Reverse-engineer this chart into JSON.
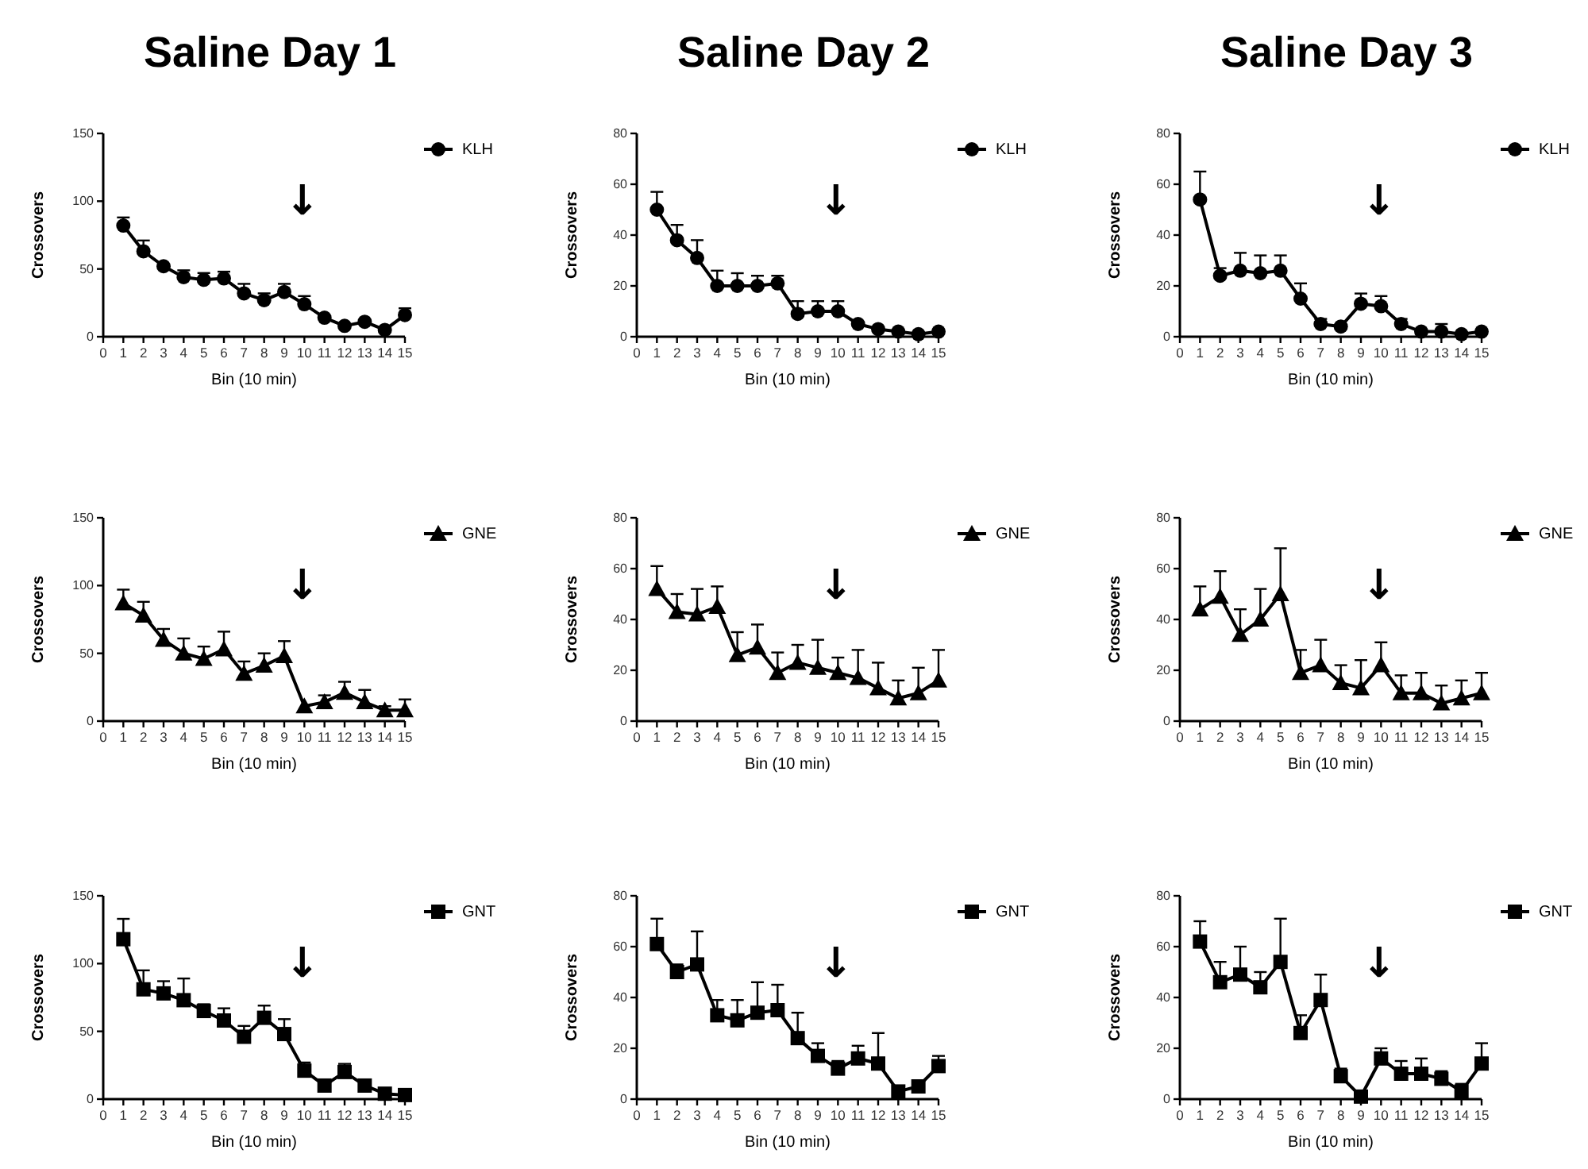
{
  "chart_data": [
    {
      "type": "line",
      "title": "Saline Day 1",
      "xlabel": "Bin (10 min)",
      "ylabel": "Crossovers",
      "xlim": [
        0,
        15
      ],
      "xticks": [
        0,
        1,
        2,
        3,
        4,
        5,
        6,
        7,
        8,
        9,
        10,
        11,
        12,
        13,
        14,
        15
      ],
      "ylim": [
        0,
        150
      ],
      "yticks": [
        0,
        50,
        100,
        150
      ],
      "legend": "top right",
      "marker": "circle",
      "annotations": [
        "↓"
      ],
      "series": [
        {
          "name": "KLH",
          "color": "#000000",
          "x": [
            1,
            2,
            3,
            4,
            5,
            6,
            7,
            8,
            9,
            10,
            11,
            12,
            13,
            14,
            15
          ],
          "values": [
            82,
            63,
            52,
            44,
            42,
            43,
            32,
            27,
            33,
            24,
            14,
            8,
            11,
            5,
            16
          ],
          "errors": [
            [
              82,
              88
            ],
            [
              63,
              71
            ],
            null,
            [
              44,
              49
            ],
            [
              42,
              47
            ],
            [
              43,
              48
            ],
            [
              32,
              39
            ],
            [
              27,
              32
            ],
            [
              33,
              39
            ],
            [
              24,
              30
            ],
            null,
            null,
            null,
            null,
            [
              16,
              21
            ]
          ]
        }
      ]
    },
    {
      "type": "line",
      "title": "Saline Day 2",
      "xlabel": "Bin (10 min)",
      "ylabel": "Crossovers",
      "xlim": [
        0,
        15
      ],
      "xticks": [
        0,
        1,
        2,
        3,
        4,
        5,
        6,
        7,
        8,
        9,
        10,
        11,
        12,
        13,
        14,
        15
      ],
      "ylim": [
        0,
        80
      ],
      "yticks": [
        0,
        20,
        40,
        60,
        80
      ],
      "legend": "top right",
      "marker": "circle",
      "annotations": [
        "↓"
      ],
      "series": [
        {
          "name": "KLH",
          "color": "#000000",
          "x": [
            1,
            2,
            3,
            4,
            5,
            6,
            7,
            8,
            9,
            10,
            11,
            12,
            13,
            14,
            15
          ],
          "values": [
            50,
            38,
            31,
            20,
            20,
            20,
            21,
            9,
            10,
            10,
            5,
            3,
            2,
            1,
            2
          ],
          "errors": [
            [
              50,
              57
            ],
            [
              38,
              44
            ],
            [
              31,
              38
            ],
            [
              20,
              26
            ],
            [
              20,
              25
            ],
            [
              20,
              24
            ],
            [
              21,
              24
            ],
            [
              9,
              14
            ],
            [
              10,
              14
            ],
            [
              10,
              14
            ],
            null,
            null,
            null,
            null,
            null
          ]
        }
      ]
    },
    {
      "type": "line",
      "title": "Saline Day 3",
      "xlabel": "Bin (10 min)",
      "ylabel": "Crossovers",
      "xlim": [
        0,
        15
      ],
      "xticks": [
        0,
        1,
        2,
        3,
        4,
        5,
        6,
        7,
        8,
        9,
        10,
        11,
        12,
        13,
        14,
        15
      ],
      "ylim": [
        0,
        80
      ],
      "yticks": [
        0,
        20,
        40,
        60,
        80
      ],
      "legend": "top right",
      "marker": "circle",
      "annotations": [
        "↓"
      ],
      "series": [
        {
          "name": "KLH",
          "color": "#000000",
          "x": [
            1,
            2,
            3,
            4,
            5,
            6,
            7,
            8,
            9,
            10,
            11,
            12,
            13,
            14,
            15
          ],
          "values": [
            54,
            24,
            26,
            25,
            26,
            15,
            5,
            4,
            13,
            12,
            5,
            2,
            2,
            1,
            2
          ],
          "errors": [
            [
              54,
              65
            ],
            [
              24,
              27
            ],
            [
              26,
              33
            ],
            [
              25,
              32
            ],
            [
              26,
              32
            ],
            [
              15,
              21
            ],
            [
              5,
              7
            ],
            null,
            [
              13,
              17
            ],
            [
              12,
              16
            ],
            [
              5,
              7
            ],
            null,
            [
              2,
              5
            ],
            null,
            null
          ]
        }
      ]
    },
    {
      "type": "line",
      "xlabel": "Bin (10 min)",
      "ylabel": "Crossovers",
      "xlim": [
        0,
        15
      ],
      "xticks": [
        0,
        1,
        2,
        3,
        4,
        5,
        6,
        7,
        8,
        9,
        10,
        11,
        12,
        13,
        14,
        15
      ],
      "ylim": [
        0,
        150
      ],
      "yticks": [
        0,
        50,
        100,
        150
      ],
      "legend": "top right",
      "marker": "triangle",
      "annotations": [
        "↓"
      ],
      "series": [
        {
          "name": "GNE",
          "color": "#000000",
          "x": [
            1,
            2,
            3,
            4,
            5,
            6,
            7,
            8,
            9,
            10,
            11,
            12,
            13,
            14,
            15
          ],
          "values": [
            87,
            78,
            60,
            50,
            46,
            53,
            35,
            41,
            48,
            11,
            14,
            21,
            14,
            8,
            8
          ],
          "errors": [
            [
              87,
              97
            ],
            [
              78,
              88
            ],
            [
              60,
              68
            ],
            [
              50,
              61
            ],
            [
              46,
              55
            ],
            [
              53,
              66
            ],
            [
              35,
              44
            ],
            [
              41,
              50
            ],
            [
              48,
              59
            ],
            null,
            [
              14,
              19
            ],
            [
              21,
              29
            ],
            [
              14,
              23
            ],
            [
              8,
              11
            ],
            [
              8,
              16
            ]
          ]
        }
      ]
    },
    {
      "type": "line",
      "xlabel": "Bin (10 min)",
      "ylabel": "Crossovers",
      "xlim": [
        0,
        15
      ],
      "xticks": [
        0,
        1,
        2,
        3,
        4,
        5,
        6,
        7,
        8,
        9,
        10,
        11,
        12,
        13,
        14,
        15
      ],
      "ylim": [
        0,
        80
      ],
      "yticks": [
        0,
        20,
        40,
        60,
        80
      ],
      "legend": "top right",
      "marker": "triangle",
      "annotations": [
        "↓"
      ],
      "series": [
        {
          "name": "GNE",
          "color": "#000000",
          "x": [
            1,
            2,
            3,
            4,
            5,
            6,
            7,
            8,
            9,
            10,
            11,
            12,
            13,
            14,
            15
          ],
          "values": [
            52,
            43,
            42,
            45,
            26,
            29,
            19,
            23,
            21,
            19,
            17,
            13,
            9,
            11,
            16
          ],
          "errors": [
            [
              52,
              61
            ],
            [
              43,
              50
            ],
            [
              42,
              52
            ],
            [
              45,
              53
            ],
            [
              26,
              35
            ],
            [
              29,
              38
            ],
            [
              19,
              27
            ],
            [
              23,
              30
            ],
            [
              21,
              32
            ],
            [
              19,
              25
            ],
            [
              17,
              28
            ],
            [
              13,
              23
            ],
            [
              9,
              16
            ],
            [
              11,
              21
            ],
            [
              16,
              28
            ]
          ]
        }
      ]
    },
    {
      "type": "line",
      "xlabel": "Bin (10 min)",
      "ylabel": "Crossovers",
      "xlim": [
        0,
        15
      ],
      "xticks": [
        0,
        1,
        2,
        3,
        4,
        5,
        6,
        7,
        8,
        9,
        10,
        11,
        12,
        13,
        14,
        15
      ],
      "ylim": [
        0,
        80
      ],
      "yticks": [
        0,
        20,
        40,
        60,
        80
      ],
      "legend": "top right",
      "marker": "triangle",
      "annotations": [
        "↓"
      ],
      "series": [
        {
          "name": "GNE",
          "color": "#000000",
          "x": [
            1,
            2,
            3,
            4,
            5,
            6,
            7,
            8,
            9,
            10,
            11,
            12,
            13,
            14,
            15
          ],
          "values": [
            44,
            49,
            34,
            40,
            50,
            19,
            22,
            15,
            13,
            22,
            11,
            11,
            7,
            9,
            11
          ],
          "errors": [
            [
              44,
              53
            ],
            [
              49,
              59
            ],
            [
              34,
              44
            ],
            [
              40,
              52
            ],
            [
              50,
              68
            ],
            [
              19,
              28
            ],
            [
              22,
              32
            ],
            [
              15,
              22
            ],
            [
              13,
              24
            ],
            [
              22,
              31
            ],
            [
              11,
              18
            ],
            [
              11,
              19
            ],
            [
              7,
              14
            ],
            [
              9,
              16
            ],
            [
              11,
              19
            ]
          ]
        }
      ]
    },
    {
      "type": "line",
      "xlabel": "Bin (10 min)",
      "ylabel": "Crossovers",
      "xlim": [
        0,
        15
      ],
      "xticks": [
        0,
        1,
        2,
        3,
        4,
        5,
        6,
        7,
        8,
        9,
        10,
        11,
        12,
        13,
        14,
        15
      ],
      "ylim": [
        0,
        150
      ],
      "yticks": [
        0,
        50,
        100,
        150
      ],
      "legend": "top right",
      "marker": "square",
      "annotations": [
        "↓"
      ],
      "series": [
        {
          "name": "GNT",
          "color": "#000000",
          "x": [
            1,
            2,
            3,
            4,
            5,
            6,
            7,
            8,
            9,
            10,
            11,
            12,
            13,
            14,
            15
          ],
          "values": [
            118,
            81,
            78,
            73,
            65,
            58,
            46,
            60,
            48,
            21,
            10,
            20,
            10,
            4,
            3
          ],
          "errors": [
            [
              118,
              133
            ],
            [
              81,
              95
            ],
            [
              78,
              87
            ],
            [
              73,
              89
            ],
            [
              65,
              70
            ],
            [
              58,
              67
            ],
            [
              46,
              54
            ],
            [
              60,
              69
            ],
            [
              48,
              59
            ],
            [
              21,
              27
            ],
            null,
            [
              20,
              26
            ],
            null,
            null,
            null
          ]
        }
      ]
    },
    {
      "type": "line",
      "xlabel": "Bin (10 min)",
      "ylabel": "Crossovers",
      "xlim": [
        0,
        15
      ],
      "xticks": [
        0,
        1,
        2,
        3,
        4,
        5,
        6,
        7,
        8,
        9,
        10,
        11,
        12,
        13,
        14,
        15
      ],
      "ylim": [
        0,
        80
      ],
      "yticks": [
        0,
        20,
        40,
        60,
        80
      ],
      "legend": "top right",
      "marker": "square",
      "annotations": [
        "↓"
      ],
      "series": [
        {
          "name": "GNT",
          "color": "#000000",
          "x": [
            1,
            2,
            3,
            4,
            5,
            6,
            7,
            8,
            9,
            10,
            11,
            12,
            13,
            14,
            15
          ],
          "values": [
            61,
            50,
            53,
            33,
            31,
            34,
            35,
            24,
            17,
            12,
            16,
            14,
            3,
            5,
            13
          ],
          "errors": [
            [
              61,
              71
            ],
            [
              50,
              53
            ],
            [
              53,
              66
            ],
            [
              33,
              39
            ],
            [
              31,
              39
            ],
            [
              34,
              46
            ],
            [
              35,
              45
            ],
            [
              24,
              34
            ],
            [
              17,
              22
            ],
            [
              12,
              15
            ],
            [
              16,
              21
            ],
            [
              14,
              26
            ],
            null,
            [
              5,
              7
            ],
            [
              13,
              17
            ]
          ]
        }
      ]
    },
    {
      "type": "line",
      "xlabel": "Bin (10 min)",
      "ylabel": "Crossovers",
      "xlim": [
        0,
        15
      ],
      "xticks": [
        0,
        1,
        2,
        3,
        4,
        5,
        6,
        7,
        8,
        9,
        10,
        11,
        12,
        13,
        14,
        15
      ],
      "ylim": [
        0,
        80
      ],
      "yticks": [
        0,
        20,
        40,
        60,
        80
      ],
      "legend": "top right",
      "marker": "square",
      "annotations": [
        "↓"
      ],
      "series": [
        {
          "name": "GNT",
          "color": "#000000",
          "x": [
            1,
            2,
            3,
            4,
            5,
            6,
            7,
            8,
            9,
            10,
            11,
            12,
            13,
            14,
            15
          ],
          "values": [
            62,
            46,
            49,
            44,
            54,
            26,
            39,
            9,
            1,
            16,
            10,
            10,
            8,
            3,
            14
          ],
          "errors": [
            [
              62,
              70
            ],
            [
              46,
              54
            ],
            [
              49,
              60
            ],
            [
              44,
              50
            ],
            [
              54,
              71
            ],
            [
              26,
              33
            ],
            [
              39,
              49
            ],
            [
              9,
              12
            ],
            null,
            [
              16,
              20
            ],
            [
              10,
              15
            ],
            [
              10,
              16
            ],
            [
              8,
              11
            ],
            [
              3,
              6
            ],
            [
              14,
              22
            ]
          ]
        }
      ]
    }
  ]
}
